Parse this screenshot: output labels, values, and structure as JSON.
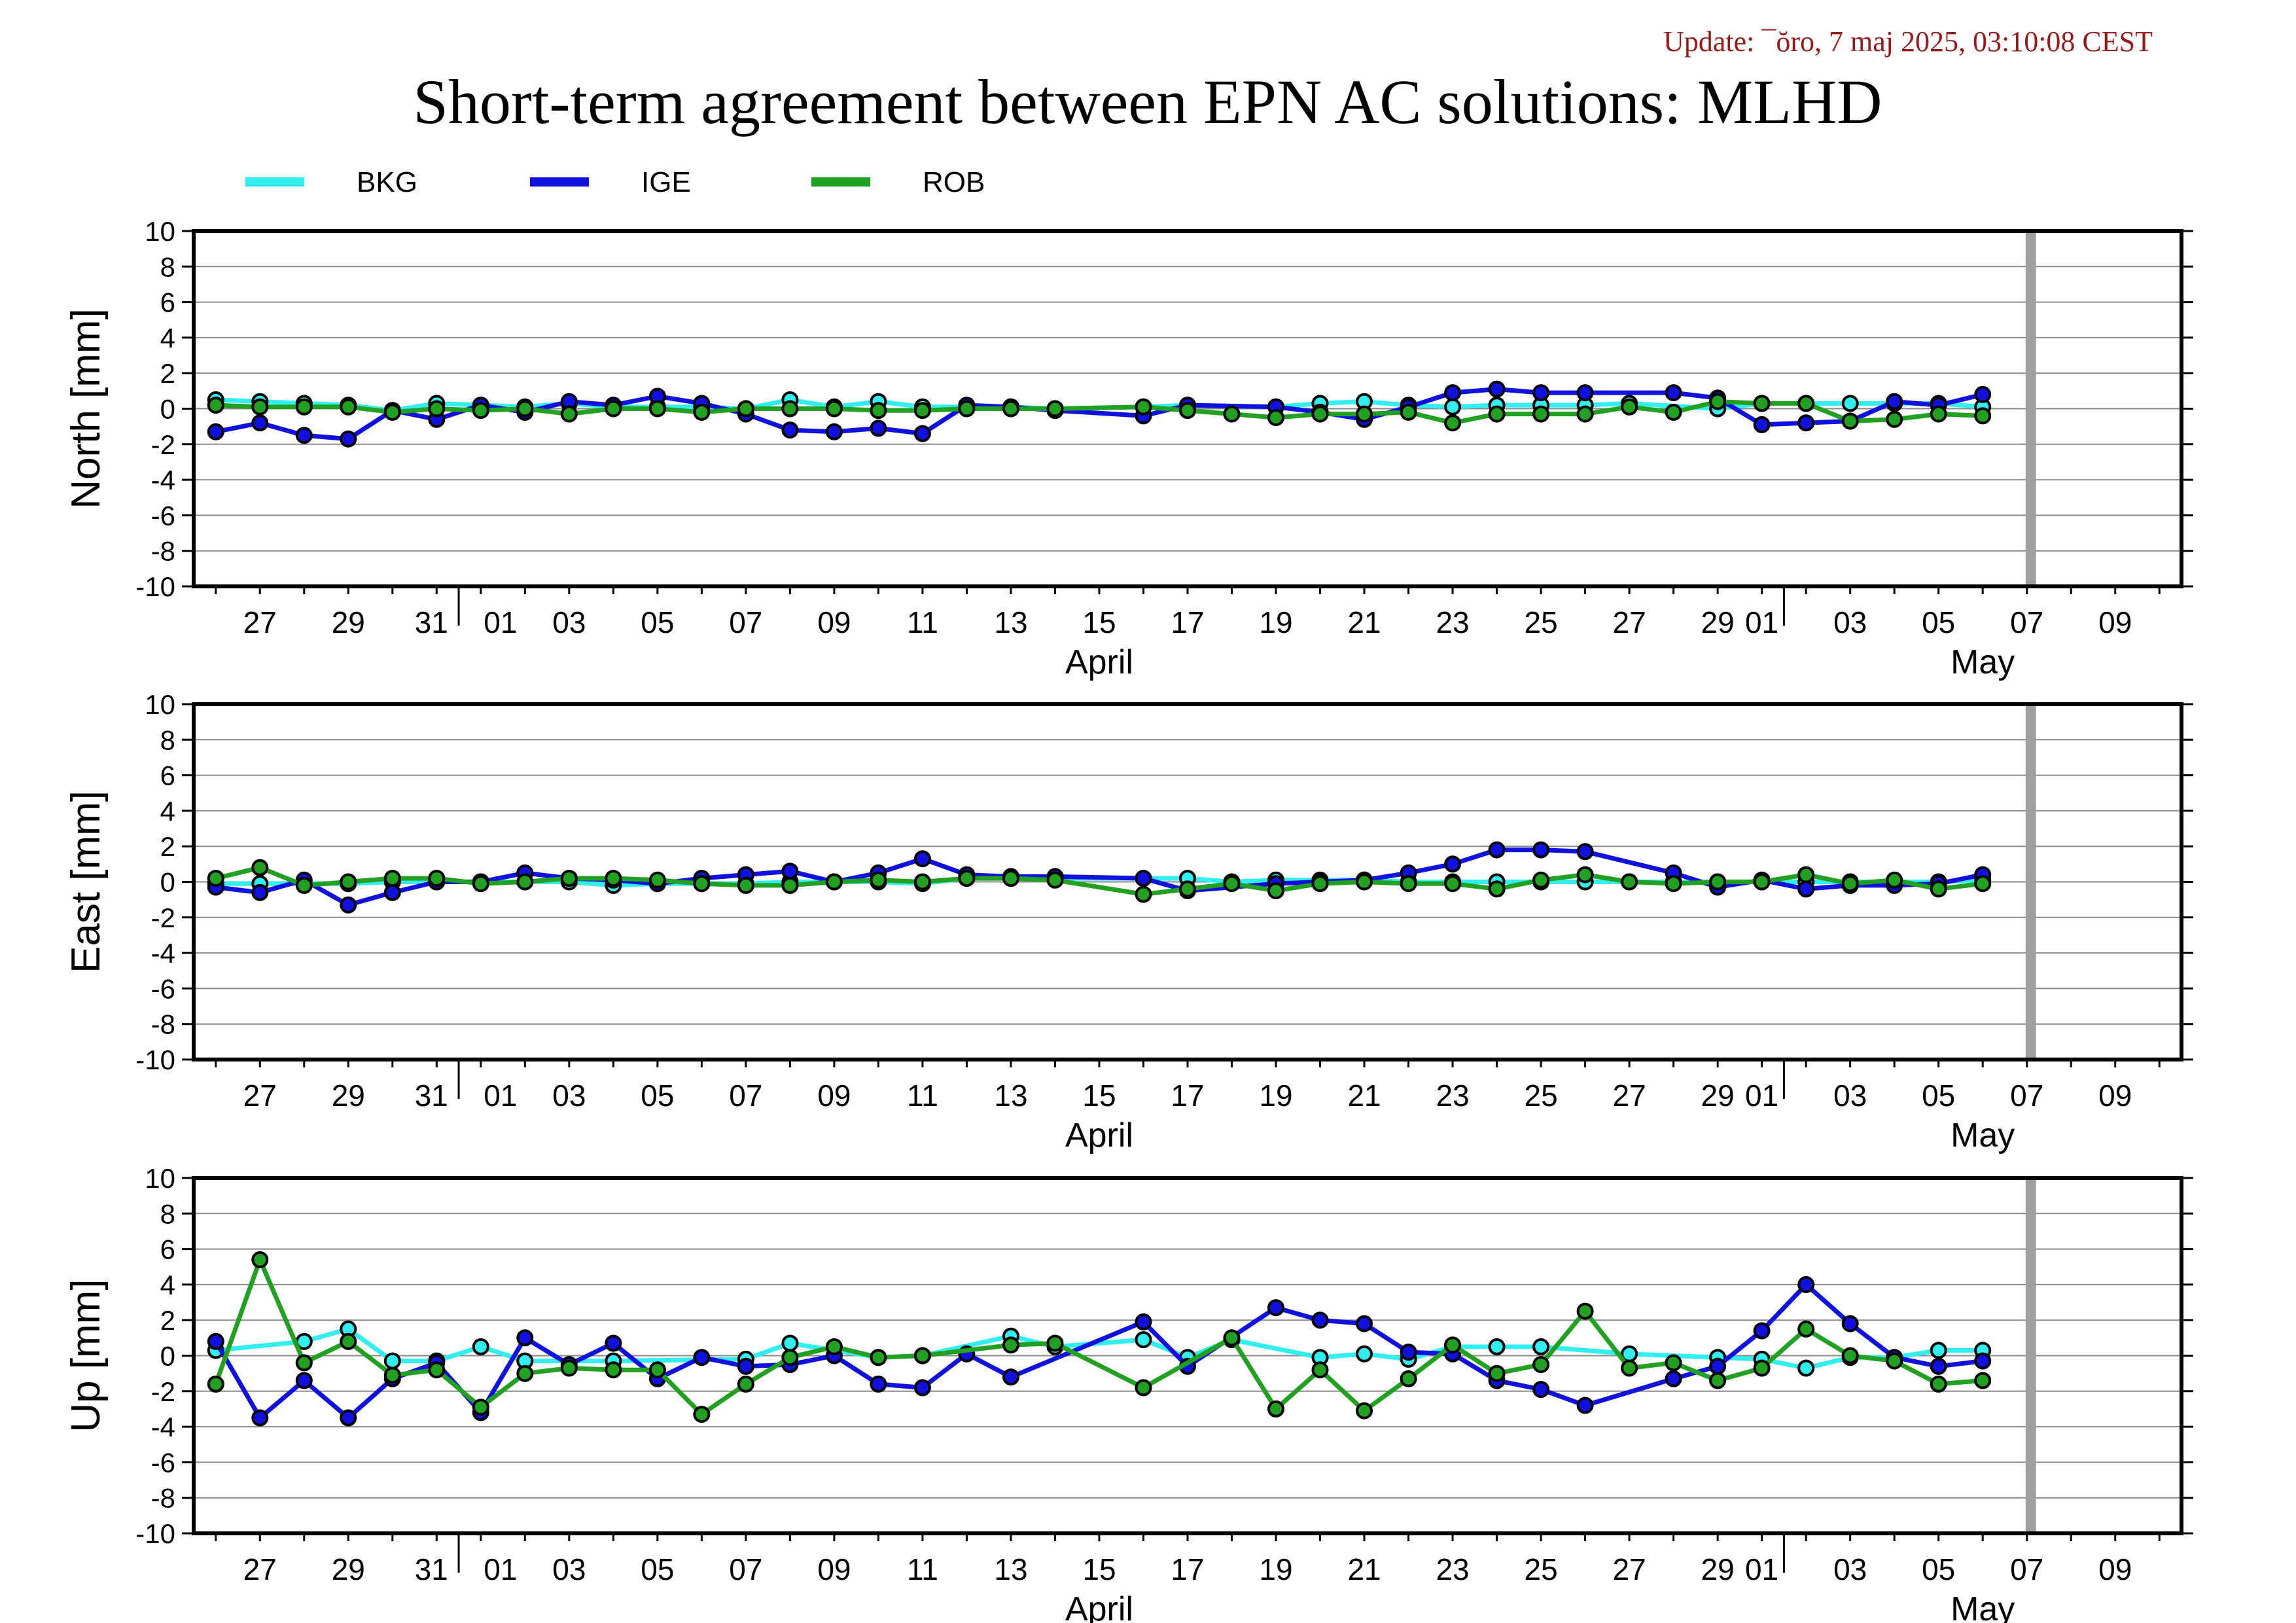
{
  "header": {
    "update": "Update: ¯ŏro, 7 maj 2025, 03:10:08 CEST",
    "title": "Short-term agreement between EPN AC solutions: MLHD"
  },
  "colors": {
    "BKG": "#33eeee",
    "IGE": "#1111dd",
    "ROB": "#22a022",
    "update": "#991a1a",
    "future_bar": "#a0a0a0"
  },
  "legend": [
    {
      "name": "BKG",
      "color": "#33eeee"
    },
    {
      "name": "IGE",
      "color": "#1111dd"
    },
    {
      "name": "ROB",
      "color": "#22a022"
    }
  ],
  "x_axis": {
    "day_ticks": [
      "27",
      "29",
      "31",
      "01",
      "03",
      "05",
      "07",
      "09",
      "11",
      "13",
      "15",
      "17",
      "19",
      "21",
      "23",
      "25",
      "27",
      "29",
      "01",
      "03",
      "05",
      "07",
      "09"
    ],
    "months": [
      "April",
      "May"
    ]
  },
  "chart_data": [
    {
      "type": "line",
      "panel": "north",
      "ylabel": "North [mm]",
      "ylim": [
        -10,
        10
      ],
      "yticks": [
        10,
        8,
        6,
        4,
        2,
        0,
        -2,
        -4,
        -6,
        -8,
        -10
      ],
      "grid": true,
      "legend": "top-left",
      "x_start": "2025-03-26",
      "x_end": "2025-05-09",
      "series": [
        {
          "name": "BKG",
          "x": [
            "2025-03-26",
            "2025-03-27",
            "2025-03-28",
            "2025-03-29",
            "2025-03-30",
            "2025-03-31",
            "2025-04-01",
            "2025-04-02",
            "2025-04-03",
            "2025-04-04",
            "2025-04-05",
            "2025-04-06",
            "2025-04-07",
            "2025-04-08",
            "2025-04-09",
            "2025-04-10",
            "2025-04-11",
            "2025-04-12",
            "2025-04-13",
            "2025-04-14",
            "2025-04-16",
            "2025-04-17",
            "2025-04-19",
            "2025-04-20",
            "2025-04-21",
            "2025-04-22",
            "2025-04-23",
            "2025-04-24",
            "2025-04-25",
            "2025-04-26",
            "2025-04-27",
            "2025-04-29",
            "2025-04-30",
            "2025-05-01",
            "2025-05-02",
            "2025-05-03",
            "2025-05-04",
            "2025-05-05"
          ],
          "values": [
            0.5,
            0.4,
            0.3,
            0.2,
            -0.1,
            0.3,
            0.2,
            0.1,
            0.3,
            0.1,
            0.1,
            0.1,
            0.0,
            0.5,
            0.1,
            0.4,
            0.1,
            0.1,
            0.1,
            0.0,
            0.1,
            0.2,
            0.1,
            0.3,
            0.4,
            0.2,
            0.1,
            0.2,
            0.2,
            0.2,
            0.3,
            0.0,
            0.3,
            0.3,
            0.3,
            0.3,
            0.3,
            0.1
          ]
        },
        {
          "name": "IGE",
          "x": [
            "2025-03-26",
            "2025-03-27",
            "2025-03-28",
            "2025-03-29",
            "2025-03-30",
            "2025-03-31",
            "2025-04-01",
            "2025-04-02",
            "2025-04-03",
            "2025-04-04",
            "2025-04-05",
            "2025-04-06",
            "2025-04-07",
            "2025-04-08",
            "2025-04-09",
            "2025-04-10",
            "2025-04-11",
            "2025-04-12",
            "2025-04-13",
            "2025-04-14",
            "2025-04-16",
            "2025-04-17",
            "2025-04-19",
            "2025-04-20",
            "2025-04-21",
            "2025-04-22",
            "2025-04-23",
            "2025-04-24",
            "2025-04-25",
            "2025-04-26",
            "2025-04-28",
            "2025-04-29",
            "2025-04-30",
            "2025-05-01",
            "2025-05-02",
            "2025-05-03",
            "2025-05-04",
            "2025-05-05"
          ],
          "values": [
            -1.3,
            -0.8,
            -1.5,
            -1.7,
            -0.1,
            -0.6,
            0.2,
            -0.2,
            0.4,
            0.2,
            0.7,
            0.3,
            -0.3,
            -1.2,
            -1.3,
            -1.1,
            -1.4,
            0.2,
            0.1,
            -0.1,
            -0.4,
            0.2,
            0.1,
            -0.2,
            -0.6,
            0.1,
            0.9,
            1.1,
            0.9,
            0.9,
            0.9,
            0.6,
            -0.9,
            -0.8,
            -0.7,
            0.4,
            0.2,
            0.8
          ]
        },
        {
          "name": "ROB",
          "x": [
            "2025-03-26",
            "2025-03-27",
            "2025-03-28",
            "2025-03-29",
            "2025-03-30",
            "2025-03-31",
            "2025-04-01",
            "2025-04-02",
            "2025-04-03",
            "2025-04-04",
            "2025-04-05",
            "2025-04-06",
            "2025-04-07",
            "2025-04-08",
            "2025-04-09",
            "2025-04-10",
            "2025-04-11",
            "2025-04-12",
            "2025-04-13",
            "2025-04-14",
            "2025-04-16",
            "2025-04-17",
            "2025-04-18",
            "2025-04-19",
            "2025-04-20",
            "2025-04-21",
            "2025-04-22",
            "2025-04-23",
            "2025-04-24",
            "2025-04-25",
            "2025-04-26",
            "2025-04-27",
            "2025-04-28",
            "2025-04-29",
            "2025-04-30",
            "2025-05-01",
            "2025-05-02",
            "2025-05-03",
            "2025-05-04",
            "2025-05-05"
          ],
          "values": [
            0.2,
            0.1,
            0.1,
            0.1,
            -0.2,
            0.0,
            -0.1,
            0.0,
            -0.3,
            0.0,
            0.0,
            -0.2,
            0.0,
            0.0,
            0.0,
            -0.1,
            -0.1,
            0.0,
            0.0,
            0.0,
            0.1,
            -0.1,
            -0.3,
            -0.5,
            -0.3,
            -0.3,
            -0.2,
            -0.8,
            -0.3,
            -0.3,
            -0.3,
            0.1,
            -0.2,
            0.4,
            0.3,
            0.3,
            -0.7,
            -0.6,
            -0.3,
            -0.4
          ]
        }
      ]
    },
    {
      "type": "line",
      "panel": "east",
      "ylabel": "East [mm]",
      "ylim": [
        -10,
        10
      ],
      "yticks": [
        10,
        8,
        6,
        4,
        2,
        0,
        -2,
        -4,
        -6,
        -8,
        -10
      ],
      "grid": true,
      "x_start": "2025-03-26",
      "x_end": "2025-05-09",
      "series": [
        {
          "name": "BKG",
          "x": [
            "2025-03-26",
            "2025-03-27",
            "2025-03-28",
            "2025-03-29",
            "2025-03-30",
            "2025-03-31",
            "2025-04-01",
            "2025-04-02",
            "2025-04-03",
            "2025-04-04",
            "2025-04-05",
            "2025-04-06",
            "2025-04-07",
            "2025-04-08",
            "2025-04-09",
            "2025-04-10",
            "2025-04-11",
            "2025-04-12",
            "2025-04-13",
            "2025-04-14",
            "2025-04-16",
            "2025-04-17",
            "2025-04-18",
            "2025-04-19",
            "2025-04-20",
            "2025-04-21",
            "2025-04-22",
            "2025-04-23",
            "2025-04-24",
            "2025-04-25",
            "2025-04-26",
            "2025-04-27",
            "2025-04-28",
            "2025-04-29",
            "2025-04-30",
            "2025-05-01",
            "2025-05-02",
            "2025-05-03",
            "2025-05-04",
            "2025-05-05"
          ],
          "values": [
            -0.1,
            -0.1,
            -0.1,
            -0.1,
            0.0,
            0.0,
            0.0,
            0.0,
            0.0,
            -0.2,
            -0.1,
            -0.1,
            -0.1,
            0.0,
            0.0,
            0.0,
            -0.1,
            0.2,
            0.2,
            0.2,
            0.2,
            0.2,
            0.0,
            0.1,
            0.1,
            0.1,
            0.0,
            0.0,
            0.0,
            0.0,
            0.0,
            0.0,
            0.0,
            0.0,
            0.0,
            0.0,
            0.0,
            0.0,
            0.0,
            0.1
          ]
        },
        {
          "name": "IGE",
          "x": [
            "2025-03-26",
            "2025-03-27",
            "2025-03-28",
            "2025-03-29",
            "2025-03-30",
            "2025-03-31",
            "2025-04-01",
            "2025-04-02",
            "2025-04-03",
            "2025-04-04",
            "2025-04-05",
            "2025-04-06",
            "2025-04-07",
            "2025-04-08",
            "2025-04-09",
            "2025-04-10",
            "2025-04-11",
            "2025-04-12",
            "2025-04-13",
            "2025-04-14",
            "2025-04-16",
            "2025-04-17",
            "2025-04-19",
            "2025-04-20",
            "2025-04-21",
            "2025-04-22",
            "2025-04-23",
            "2025-04-24",
            "2025-04-25",
            "2025-04-26",
            "2025-04-28",
            "2025-04-29",
            "2025-04-30",
            "2025-05-01",
            "2025-05-02",
            "2025-05-03",
            "2025-05-04",
            "2025-05-05"
          ],
          "values": [
            -0.3,
            -0.6,
            0.1,
            -1.3,
            -0.6,
            0.0,
            0.0,
            0.5,
            0.2,
            0.1,
            -0.1,
            0.2,
            0.4,
            0.6,
            0.0,
            0.5,
            1.3,
            0.4,
            0.3,
            0.3,
            0.2,
            -0.5,
            -0.1,
            0.0,
            0.1,
            0.5,
            1.0,
            1.8,
            1.8,
            1.7,
            0.5,
            -0.3,
            0.1,
            -0.4,
            -0.2,
            -0.2,
            -0.1,
            0.4
          ]
        },
        {
          "name": "ROB",
          "x": [
            "2025-03-26",
            "2025-03-27",
            "2025-03-28",
            "2025-03-29",
            "2025-03-30",
            "2025-03-31",
            "2025-04-01",
            "2025-04-02",
            "2025-04-03",
            "2025-04-04",
            "2025-04-05",
            "2025-04-06",
            "2025-04-07",
            "2025-04-08",
            "2025-04-09",
            "2025-04-10",
            "2025-04-11",
            "2025-04-12",
            "2025-04-13",
            "2025-04-14",
            "2025-04-16",
            "2025-04-17",
            "2025-04-18",
            "2025-04-19",
            "2025-04-20",
            "2025-04-21",
            "2025-04-22",
            "2025-04-23",
            "2025-04-24",
            "2025-04-25",
            "2025-04-26",
            "2025-04-27",
            "2025-04-28",
            "2025-04-29",
            "2025-04-30",
            "2025-05-01",
            "2025-05-02",
            "2025-05-03",
            "2025-05-04",
            "2025-05-05"
          ],
          "values": [
            0.2,
            0.8,
            -0.2,
            0.0,
            0.2,
            0.2,
            -0.1,
            0.0,
            0.2,
            0.2,
            0.1,
            -0.1,
            -0.2,
            -0.2,
            0.0,
            0.1,
            0.0,
            0.2,
            0.2,
            0.1,
            -0.7,
            -0.4,
            -0.1,
            -0.5,
            -0.1,
            0.0,
            -0.1,
            -0.1,
            -0.4,
            0.1,
            0.4,
            0.0,
            -0.1,
            0.0,
            0.0,
            0.4,
            -0.1,
            0.1,
            -0.4,
            -0.1
          ]
        }
      ]
    },
    {
      "type": "line",
      "panel": "up",
      "ylabel": "Up [mm]",
      "ylim": [
        -10,
        10
      ],
      "yticks": [
        10,
        8,
        6,
        4,
        2,
        0,
        -2,
        -4,
        -6,
        -8,
        -10
      ],
      "grid": true,
      "x_start": "2025-03-26",
      "x_end": "2025-05-09",
      "series": [
        {
          "name": "BKG",
          "x": [
            "2025-03-26",
            "2025-03-28",
            "2025-03-29",
            "2025-03-30",
            "2025-03-31",
            "2025-04-01",
            "2025-04-02",
            "2025-04-04",
            "2025-04-07",
            "2025-04-08",
            "2025-04-10",
            "2025-04-11",
            "2025-04-13",
            "2025-04-14",
            "2025-04-16",
            "2025-04-17",
            "2025-04-18",
            "2025-04-20",
            "2025-04-21",
            "2025-04-22",
            "2025-04-23",
            "2025-04-24",
            "2025-04-25",
            "2025-04-27",
            "2025-04-29",
            "2025-04-30",
            "2025-05-01",
            "2025-05-02",
            "2025-05-03",
            "2025-05-04",
            "2025-05-05"
          ],
          "values": [
            0.3,
            0.8,
            1.5,
            -0.3,
            -0.3,
            0.5,
            -0.3,
            -0.3,
            -0.2,
            0.7,
            -0.1,
            0.0,
            1.1,
            0.5,
            0.9,
            -0.1,
            0.9,
            -0.1,
            0.1,
            -0.2,
            0.5,
            0.5,
            0.5,
            0.1,
            -0.1,
            -0.2,
            -0.7,
            -0.1,
            -0.1,
            0.3,
            0.3
          ]
        },
        {
          "name": "IGE",
          "x": [
            "2025-03-26",
            "2025-03-27",
            "2025-03-28",
            "2025-03-29",
            "2025-03-30",
            "2025-03-31",
            "2025-04-01",
            "2025-04-02",
            "2025-04-03",
            "2025-04-04",
            "2025-04-05",
            "2025-04-06",
            "2025-04-07",
            "2025-04-08",
            "2025-04-09",
            "2025-04-10",
            "2025-04-11",
            "2025-04-12",
            "2025-04-13",
            "2025-04-16",
            "2025-04-17",
            "2025-04-19",
            "2025-04-20",
            "2025-04-21",
            "2025-04-22",
            "2025-04-23",
            "2025-04-24",
            "2025-04-25",
            "2025-04-26",
            "2025-04-28",
            "2025-04-29",
            "2025-04-30",
            "2025-05-01",
            "2025-05-02",
            "2025-05-03",
            "2025-05-04",
            "2025-05-05"
          ],
          "values": [
            0.8,
            -3.5,
            -1.4,
            -3.5,
            -1.3,
            -0.4,
            -3.2,
            1.0,
            -0.5,
            0.7,
            -1.3,
            -0.1,
            -0.6,
            -0.5,
            0.0,
            -1.6,
            -1.8,
            0.1,
            -1.2,
            1.9,
            -0.6,
            2.7,
            2.0,
            1.8,
            0.2,
            0.1,
            -1.4,
            -1.9,
            -2.8,
            -1.3,
            -0.6,
            1.4,
            4.0,
            1.8,
            -0.1,
            -0.6,
            -0.3
          ]
        },
        {
          "name": "ROB",
          "x": [
            "2025-03-26",
            "2025-03-27",
            "2025-03-28",
            "2025-03-29",
            "2025-03-30",
            "2025-03-31",
            "2025-04-01",
            "2025-04-02",
            "2025-04-03",
            "2025-04-04",
            "2025-04-05",
            "2025-04-06",
            "2025-04-07",
            "2025-04-08",
            "2025-04-09",
            "2025-04-10",
            "2025-04-11",
            "2025-04-13",
            "2025-04-14",
            "2025-04-16",
            "2025-04-18",
            "2025-04-19",
            "2025-04-20",
            "2025-04-21",
            "2025-04-22",
            "2025-04-23",
            "2025-04-24",
            "2025-04-25",
            "2025-04-26",
            "2025-04-27",
            "2025-04-28",
            "2025-04-29",
            "2025-04-30",
            "2025-05-01",
            "2025-05-02",
            "2025-05-03",
            "2025-05-04",
            "2025-05-05"
          ],
          "values": [
            -1.6,
            5.4,
            -0.4,
            0.8,
            -1.1,
            -0.8,
            -2.9,
            -1.0,
            -0.7,
            -0.8,
            -0.8,
            -3.3,
            -1.6,
            -0.1,
            0.5,
            -0.1,
            0.0,
            0.6,
            0.7,
            -1.8,
            1.0,
            -3.0,
            -0.8,
            -3.1,
            -1.3,
            0.6,
            -1.0,
            -0.5,
            2.5,
            -0.7,
            -0.4,
            -1.4,
            -0.7,
            1.5,
            0.0,
            -0.3,
            -1.6,
            -1.4
          ]
        }
      ]
    }
  ]
}
